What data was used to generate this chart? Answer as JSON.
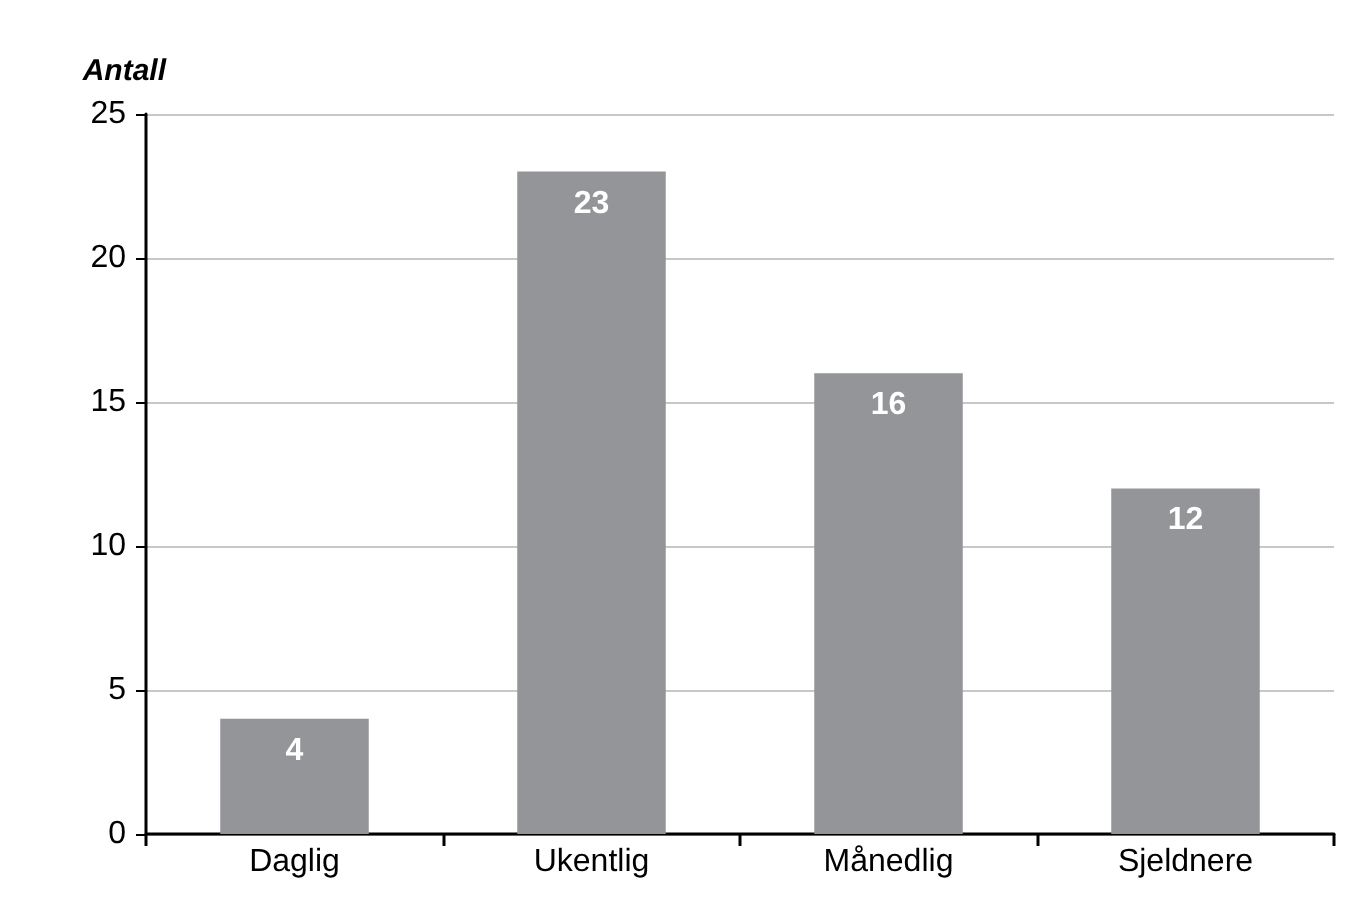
{
  "chart_data": {
    "type": "bar",
    "ylabel": "Antall",
    "categories": [
      "Daglig",
      "Ukentlig",
      "Månedlig",
      "Sjeldnere"
    ],
    "values": [
      4,
      23,
      16,
      12
    ],
    "color": "#939598",
    "ylim": [
      0,
      25
    ],
    "yticks": [
      0,
      5,
      10,
      15,
      20,
      25
    ],
    "grid": "y",
    "data_labels": true
  }
}
